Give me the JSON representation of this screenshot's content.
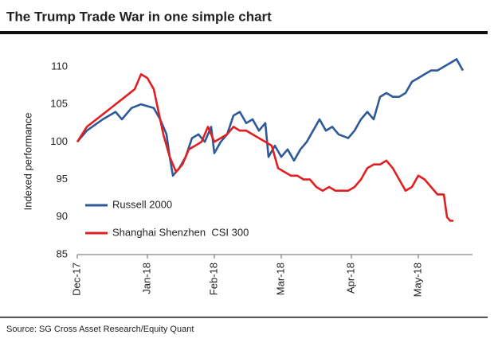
{
  "chart_data": {
    "type": "line",
    "title": "The Trump Trade War in one simple chart",
    "source": "Source: SG Cross Asset Research/Equity Quant",
    "y_label": "Indexed performance",
    "xlim": [
      0,
      124
    ],
    "xticks": [
      {
        "value": 0,
        "label": "Dec-17"
      },
      {
        "value": 22,
        "label": "Jan-18"
      },
      {
        "value": 43,
        "label": "Feb-18"
      },
      {
        "value": 64,
        "label": "Mar-18"
      },
      {
        "value": 86,
        "label": "Apr-18"
      },
      {
        "value": 107,
        "label": "May-18"
      }
    ],
    "ylim": [
      85,
      112
    ],
    "yticks": [
      85,
      90,
      95,
      100,
      105,
      110
    ],
    "legend": "lower-left",
    "series": [
      {
        "name": "Russell 2000",
        "color": "#2e5a9a",
        "x": [
          0,
          3,
          8,
          12,
          14,
          17,
          20,
          24,
          26,
          28,
          29,
          30,
          32,
          34,
          36,
          38,
          40,
          42,
          43,
          45,
          47,
          49,
          51,
          53,
          55,
          57,
          59,
          60,
          62,
          64,
          66,
          68,
          70,
          72,
          74,
          76,
          78,
          80,
          82,
          85,
          87,
          89,
          91,
          93,
          95,
          97,
          99,
          101,
          103,
          105,
          107,
          109,
          111,
          113,
          115,
          117,
          119,
          121
        ],
        "values": [
          100,
          101.5,
          103,
          104,
          103,
          104.5,
          105,
          104.5,
          103,
          101,
          98,
          95.5,
          96.5,
          98,
          100.5,
          101,
          100,
          102,
          98.5,
          100,
          101,
          103.5,
          104,
          102.5,
          103,
          101.5,
          102.5,
          98,
          99.5,
          98,
          99,
          97.5,
          99,
          100,
          101.5,
          103,
          101.5,
          102,
          101,
          100.5,
          101.5,
          103,
          104,
          103,
          106,
          106.5,
          106,
          106,
          106.5,
          108,
          108.5,
          109,
          109.5,
          109.5,
          110,
          110.5,
          111,
          109.5
        ]
      },
      {
        "name": "Shanghai Shenzhen  CSI 300",
        "color": "#e02020",
        "x": [
          0,
          3,
          6,
          9,
          12,
          15,
          18,
          20,
          22,
          24,
          25,
          27,
          29,
          31,
          33,
          35,
          37,
          39,
          41,
          43,
          45,
          47,
          49,
          51,
          53,
          55,
          57,
          59,
          61,
          63,
          65,
          67,
          69,
          71,
          73,
          75,
          77,
          79,
          81,
          85,
          87,
          89,
          91,
          93,
          95,
          97,
          99,
          101,
          103,
          105,
          107,
          109,
          111,
          113,
          115,
          116,
          117,
          118
        ],
        "values": [
          100,
          102,
          103,
          104,
          105,
          106,
          107,
          109,
          108.5,
          107,
          105,
          101,
          98,
          96,
          97,
          99,
          99.5,
          100,
          102,
          100,
          100.5,
          101,
          102,
          101.5,
          101.5,
          101,
          100.5,
          100,
          99.5,
          96.5,
          96,
          95.5,
          95.5,
          95,
          95,
          94,
          93.5,
          94,
          93.5,
          93.5,
          94,
          95,
          96.5,
          97,
          97,
          97.5,
          96.5,
          95,
          93.5,
          94,
          95.5,
          95,
          94,
          93,
          93,
          90,
          89.5,
          89.5
        ]
      }
    ]
  }
}
